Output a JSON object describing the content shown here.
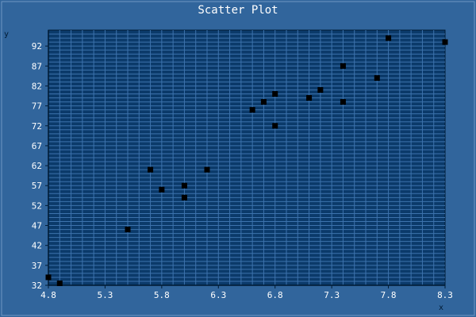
{
  "chart_data": {
    "type": "scatter",
    "title": "Scatter Plot",
    "xlabel": "x",
    "ylabel": "y",
    "xlim": [
      4.8,
      8.3
    ],
    "ylim": [
      32,
      96
    ],
    "x_ticks": [
      4.8,
      5.3,
      5.8,
      6.3,
      6.8,
      7.3,
      7.8,
      8.3
    ],
    "y_ticks": [
      32,
      37,
      42,
      47,
      52,
      57,
      62,
      67,
      72,
      77,
      82,
      87,
      92
    ],
    "grid": true,
    "legend": "none",
    "points": [
      {
        "x": 4.8,
        "y": 34
      },
      {
        "x": 4.9,
        "y": 32.5
      },
      {
        "x": 5.5,
        "y": 46
      },
      {
        "x": 5.7,
        "y": 61
      },
      {
        "x": 5.8,
        "y": 56
      },
      {
        "x": 6.0,
        "y": 57
      },
      {
        "x": 6.0,
        "y": 54
      },
      {
        "x": 6.2,
        "y": 61
      },
      {
        "x": 6.6,
        "y": 76
      },
      {
        "x": 6.7,
        "y": 78
      },
      {
        "x": 6.8,
        "y": 80
      },
      {
        "x": 6.8,
        "y": 72
      },
      {
        "x": 7.1,
        "y": 79
      },
      {
        "x": 7.2,
        "y": 81
      },
      {
        "x": 7.4,
        "y": 87
      },
      {
        "x": 7.4,
        "y": 78
      },
      {
        "x": 7.7,
        "y": 84
      },
      {
        "x": 7.8,
        "y": 94
      },
      {
        "x": 8.3,
        "y": 93
      }
    ]
  },
  "colors": {
    "background": "#31659c",
    "plot_background": "#0b3a6a",
    "grid": "#3d73ad",
    "border": "#001a33",
    "text": "#ffffff",
    "marker": "#000000"
  }
}
